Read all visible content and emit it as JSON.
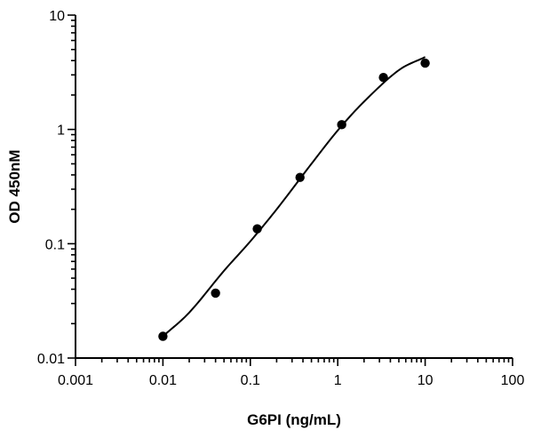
{
  "chart_data": {
    "type": "scatter",
    "title": "",
    "xlabel": "G6PI (ng/mL)",
    "ylabel": "OD 450nM",
    "xscale": "log",
    "yscale": "log",
    "xlim": [
      0.001,
      100
    ],
    "ylim": [
      0.01,
      10
    ],
    "xticks": [
      0.001,
      0.01,
      0.1,
      1,
      10,
      100
    ],
    "yticks": [
      0.01,
      0.1,
      1,
      10
    ],
    "xtick_labels": [
      "0.001",
      "0.01",
      "0.1",
      "1",
      "10",
      "100"
    ],
    "ytick_labels": [
      "0.01",
      "0.1",
      "1",
      "10"
    ],
    "grid": false,
    "legend": "none",
    "series": [
      {
        "x": [
          0.01,
          0.04,
          0.12,
          0.37,
          1.11,
          3.33,
          10
        ],
        "y": [
          0.0155,
          0.037,
          0.135,
          0.38,
          1.1,
          2.85,
          3.8
        ]
      }
    ],
    "fit_curve": {
      "type": "line",
      "x": [
        0.01,
        0.02,
        0.05,
        0.1,
        0.2,
        0.5,
        1,
        2,
        5,
        10
      ],
      "y": [
        0.0155,
        0.025,
        0.058,
        0.105,
        0.2,
        0.5,
        0.98,
        1.75,
        3.3,
        4.3
      ]
    },
    "colors": {
      "points": "#000000",
      "curve": "#000000",
      "axes": "#000000"
    }
  }
}
